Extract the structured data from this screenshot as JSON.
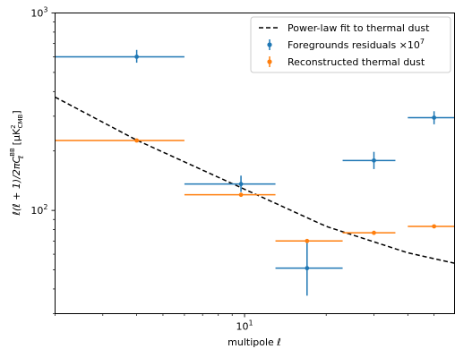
{
  "chart_data": {
    "type": "scatter",
    "xlabel": "multipole ℓ",
    "ylabel": "ℓ(ℓ + 1)/2πC_ℓ^BB [μK²_CMB]",
    "xscale": "log",
    "yscale": "log",
    "xlim": [
      2.0,
      59.5
    ],
    "ylim": [
      30,
      1000
    ],
    "x_major_ticks": [
      {
        "value": 10,
        "label": "10^1"
      }
    ],
    "y_major_ticks": [
      {
        "value": 100,
        "label": "10^2"
      },
      {
        "value": 1000,
        "label": "10^3"
      }
    ],
    "y_minor_ticks": [
      30,
      40,
      50,
      60,
      70,
      80,
      90,
      200,
      300,
      400,
      500,
      600,
      700,
      800,
      900
    ],
    "x_minor_ticks": [
      2,
      3,
      4,
      5,
      6,
      7,
      8,
      9,
      20,
      30,
      40,
      50
    ],
    "legend_position": "top-right",
    "series": [
      {
        "name": "Power-law fit to thermal dust",
        "kind": "line",
        "style": "dashed",
        "color": "#000000",
        "x": [
          2.0,
          4.0,
          10.0,
          20.0,
          40.0,
          59.5
        ],
        "y": [
          375,
          227,
          128,
          83,
          61,
          54
        ]
      },
      {
        "name": "Foregrounds residuals ×10^7",
        "kind": "errorbar",
        "color": "#1f77b4",
        "points": [
          {
            "x": 4.0,
            "xerr": [
              2.0,
              6.0
            ],
            "y": 600,
            "yerr": [
              560,
              650
            ]
          },
          {
            "x": 9.7,
            "xerr": [
              6.0,
              13.0
            ],
            "y": 136,
            "yerr": [
              124,
              150
            ]
          },
          {
            "x": 17.0,
            "xerr": [
              13.0,
              23.0
            ],
            "y": 51,
            "yerr": [
              37,
              69
            ]
          },
          {
            "x": 30.0,
            "xerr": [
              23.0,
              36.0
            ],
            "y": 179,
            "yerr": [
              162,
              198
            ]
          },
          {
            "x": 50.0,
            "xerr": [
              40.0,
              59.5
            ],
            "y": 295,
            "yerr": [
              273,
              318
            ]
          }
        ]
      },
      {
        "name": "Reconstructed thermal dust",
        "kind": "errorbar",
        "color": "#ff7f0e",
        "points": [
          {
            "x": 4.0,
            "xerr": [
              2.0,
              6.0
            ],
            "y": 226,
            "yerr": [
              224,
              228
            ]
          },
          {
            "x": 9.7,
            "xerr": [
              6.0,
              13.0
            ],
            "y": 120,
            "yerr": [
              119,
              121
            ]
          },
          {
            "x": 17.0,
            "xerr": [
              13.0,
              23.0
            ],
            "y": 70,
            "yerr": [
              69.4,
              70.6
            ]
          },
          {
            "x": 30.0,
            "xerr": [
              23.0,
              36.0
            ],
            "y": 77,
            "yerr": [
              76.4,
              77.6
            ]
          },
          {
            "x": 50.0,
            "xerr": [
              40.0,
              59.5
            ],
            "y": 83,
            "yerr": [
              82.4,
              83.6
            ]
          }
        ]
      }
    ]
  }
}
